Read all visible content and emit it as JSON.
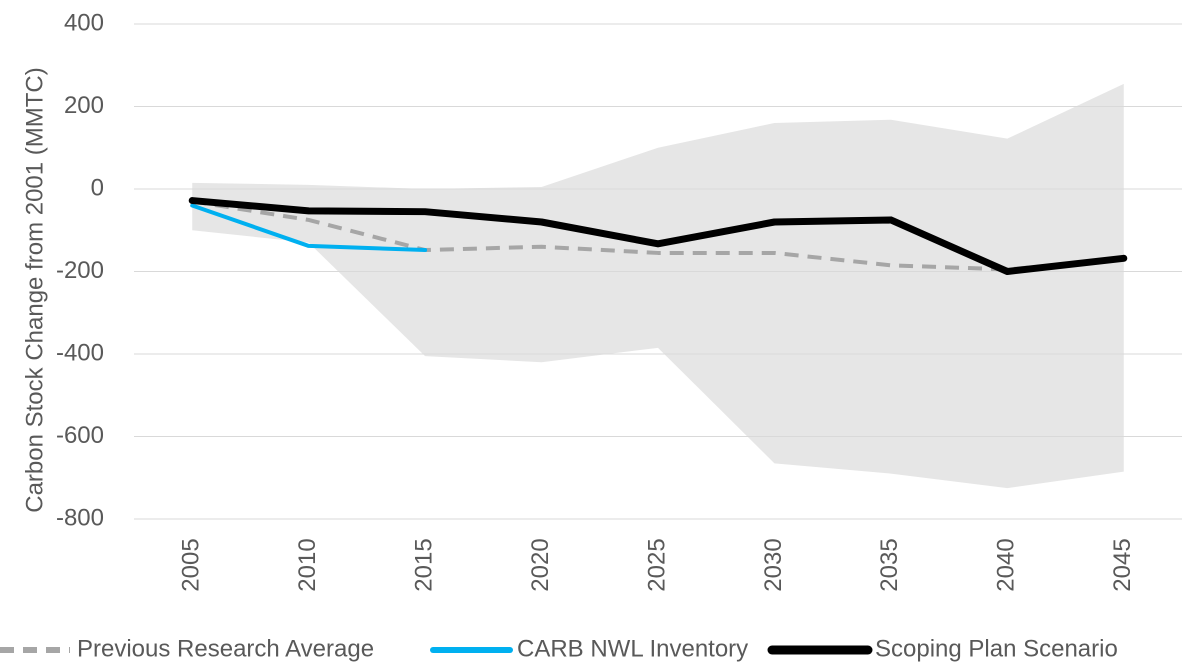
{
  "chart_data": {
    "type": "line",
    "y_label": "Carbon Stock Change from 2001 (MMTC)",
    "categories": [
      "2005",
      "2010",
      "2015",
      "2020",
      "2025",
      "2030",
      "2035",
      "2040",
      "2045"
    ],
    "ylim": [
      -800,
      400
    ],
    "yticks": [
      -800,
      -600,
      -400,
      -200,
      0,
      200,
      400
    ],
    "grid": true,
    "range": {
      "color": "#e6e6e6",
      "upper": [
        15,
        10,
        0,
        5,
        100,
        160,
        168,
        122,
        255
      ],
      "lower": [
        -100,
        -130,
        -405,
        -420,
        -385,
        -665,
        -690,
        -725,
        -685
      ]
    },
    "series": [
      {
        "name": "Previous Research Average",
        "color": "#a6a6a6",
        "dashed": true,
        "values": [
          -30,
          -75,
          -148,
          -140,
          -155,
          -155,
          -185,
          -195,
          -170
        ]
      },
      {
        "name": "CARB NWL Inventory",
        "color": "#00b0f0",
        "values": [
          -40,
          -138,
          -148,
          null,
          null,
          null,
          null,
          null,
          null
        ]
      },
      {
        "name": "Scoping Plan Scenario",
        "color": "#000000",
        "values": [
          -28,
          -53,
          -55,
          -80,
          -133,
          -80,
          -75,
          -200,
          -168
        ]
      }
    ],
    "legend": "bottom"
  }
}
